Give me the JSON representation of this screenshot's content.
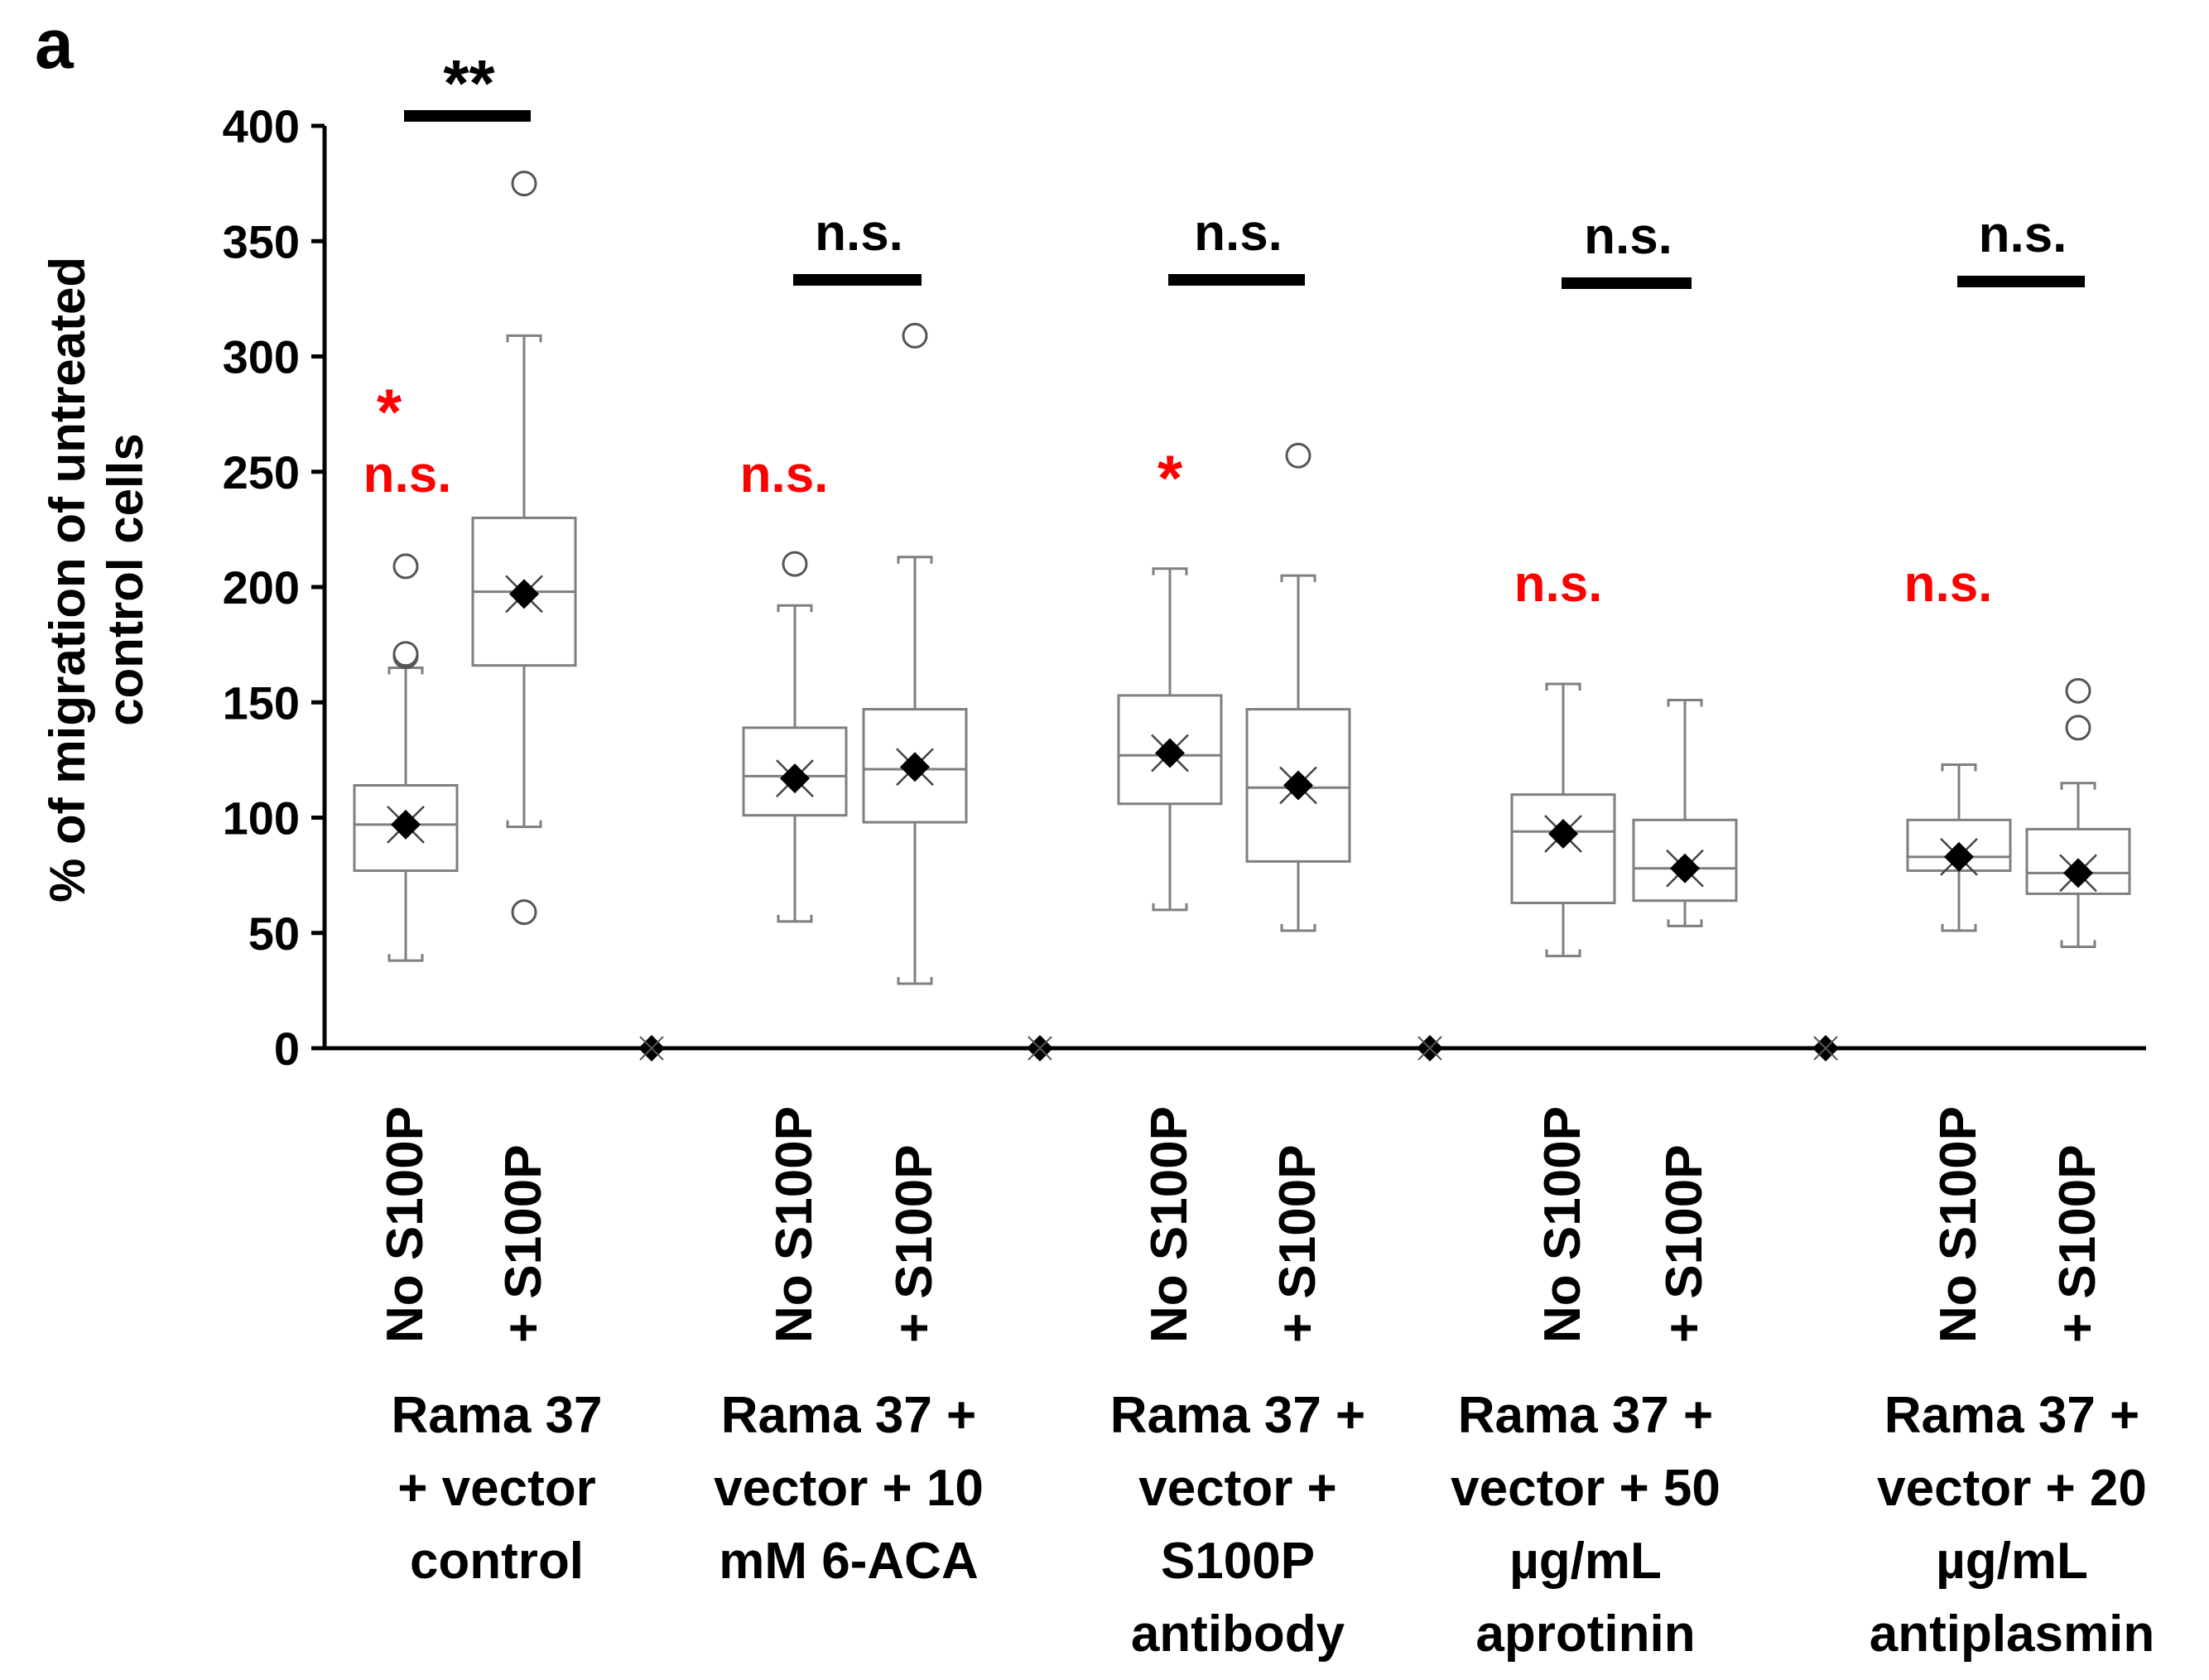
{
  "panel_label": "a",
  "chart_data": {
    "type": "box",
    "ylabel_lines": [
      "% of migration of untreated",
      "control cells"
    ],
    "ylim": [
      0,
      400
    ],
    "yticks": [
      0,
      50,
      100,
      150,
      200,
      250,
      300,
      350,
      400
    ],
    "grid": false,
    "colors": {
      "axis": "#000000",
      "box": "#7f7f7f",
      "significance": "#ff0000"
    },
    "groups": [
      {
        "label_lines": [
          "Rama 37",
          "+ vector",
          "control"
        ],
        "bracket_label": "**",
        "boxes": [
          {
            "name": "No S100P",
            "whisker_low": 38,
            "q1": 77,
            "median": 97,
            "q3": 114,
            "whisker_high": 165,
            "mean": 97,
            "outliers": [
              170,
              171,
              209
            ],
            "sig_labels": [
              "*",
              "n.s."
            ]
          },
          {
            "name": "+ S100P",
            "whisker_low": 96,
            "q1": 166,
            "median": 198,
            "q3": 230,
            "whisker_high": 309,
            "mean": 197,
            "outliers": [
              59,
              375
            ],
            "sig_labels": []
          }
        ]
      },
      {
        "label_lines": [
          "Rama 37 +",
          "vector + 10",
          "mM 6-ACA"
        ],
        "bracket_label": "n.s.",
        "boxes": [
          {
            "name": "No S100P",
            "whisker_low": 55,
            "q1": 101,
            "median": 118,
            "q3": 139,
            "whisker_high": 192,
            "mean": 117,
            "outliers": [
              210
            ],
            "sig_labels": [
              "n.s."
            ]
          },
          {
            "name": "+ S100P",
            "whisker_low": 28,
            "q1": 98,
            "median": 121,
            "q3": 147,
            "whisker_high": 213,
            "mean": 122,
            "outliers": [
              309
            ],
            "sig_labels": []
          }
        ]
      },
      {
        "label_lines": [
          "Rama 37 +",
          "vector +",
          "S100P",
          "antibody"
        ],
        "bracket_label": "n.s.",
        "boxes": [
          {
            "name": "No S100P",
            "whisker_low": 60,
            "q1": 106,
            "median": 127,
            "q3": 153,
            "whisker_high": 208,
            "mean": 128,
            "outliers": [],
            "sig_labels": [
              "*"
            ]
          },
          {
            "name": "+ S100P",
            "whisker_low": 51,
            "q1": 81,
            "median": 113,
            "q3": 147,
            "whisker_high": 205,
            "mean": 114,
            "outliers": [
              257
            ],
            "sig_labels": []
          }
        ]
      },
      {
        "label_lines": [
          "Rama 37 +",
          "vector + 50",
          "µg/mL",
          "aprotinin"
        ],
        "bracket_label": "n.s.",
        "boxes": [
          {
            "name": "No S100P",
            "whisker_low": 40,
            "q1": 63,
            "median": 94,
            "q3": 110,
            "whisker_high": 158,
            "mean": 93,
            "outliers": [],
            "sig_labels": [
              "n.s."
            ]
          },
          {
            "name": "+ S100P",
            "whisker_low": 53,
            "q1": 64,
            "median": 78,
            "q3": 99,
            "whisker_high": 151,
            "mean": 78,
            "outliers": [],
            "sig_labels": []
          }
        ]
      },
      {
        "label_lines": [
          "Rama 37 +",
          "vector + 20",
          "µg/mL",
          "antiplasmin"
        ],
        "bracket_label": "n.s.",
        "boxes": [
          {
            "name": "No S100P",
            "whisker_low": 51,
            "q1": 77,
            "median": 83,
            "q3": 99,
            "whisker_high": 123,
            "mean": 83,
            "outliers": [],
            "sig_labels": [
              "n.s."
            ]
          },
          {
            "name": "+ S100P",
            "whisker_low": 44,
            "q1": 67,
            "median": 76,
            "q3": 95,
            "whisker_high": 115,
            "mean": 76,
            "outliers": [
              139,
              155
            ],
            "sig_labels": []
          }
        ]
      }
    ],
    "spacer_points": [
      0,
      0,
      0,
      0
    ]
  }
}
